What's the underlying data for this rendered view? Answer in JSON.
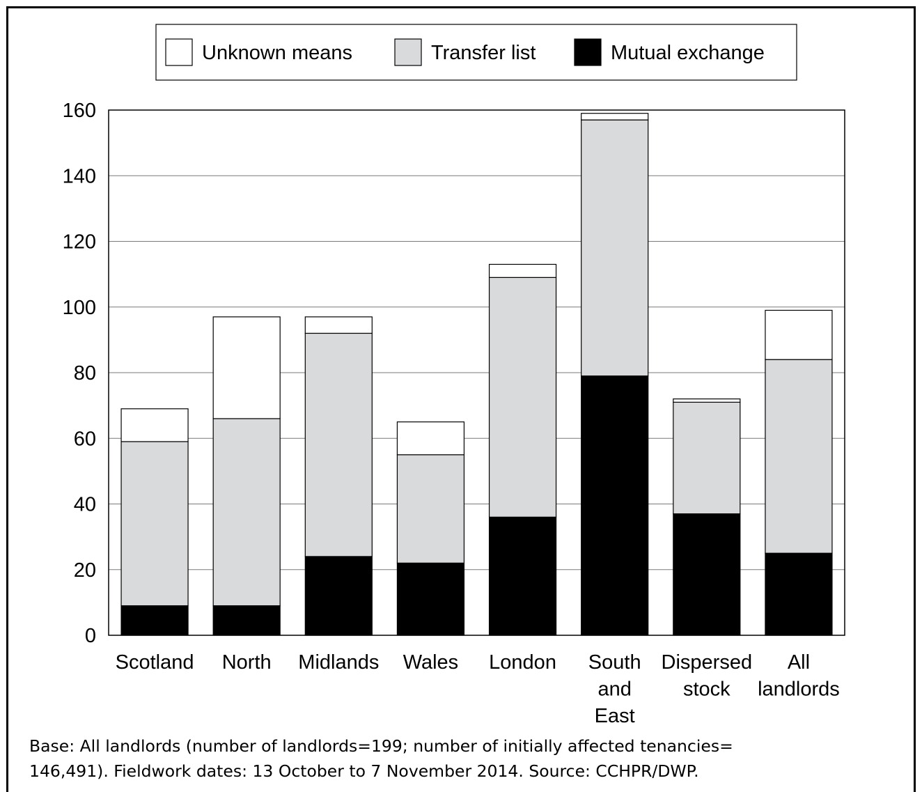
{
  "chart_data": {
    "type": "bar",
    "stacked": true,
    "categories": [
      "Scotland",
      "North",
      "Midlands",
      "Wales",
      "London",
      "South and East",
      "Dispersed stock",
      "All landlords"
    ],
    "category_lines": [
      [
        "Scotland"
      ],
      [
        "North"
      ],
      [
        "Midlands"
      ],
      [
        "Wales"
      ],
      [
        "London"
      ],
      [
        "South",
        "and",
        "East"
      ],
      [
        "Dispersed",
        "stock"
      ],
      [
        "All",
        "landlords"
      ]
    ],
    "series": [
      {
        "name": "Mutual exchange",
        "color": "#000000",
        "values": [
          9,
          9,
          24,
          22,
          36,
          79,
          37,
          25
        ]
      },
      {
        "name": "Transfer list",
        "color": "#d9dadb",
        "values": [
          50,
          57,
          68,
          33,
          73,
          78,
          34,
          59
        ]
      },
      {
        "name": "Unknown means",
        "color": "#ffffff",
        "values": [
          10,
          31,
          5,
          10,
          4,
          2,
          1,
          15
        ]
      }
    ],
    "legend_order": [
      "Unknown means",
      "Transfer list",
      "Mutual exchange"
    ],
    "legend_position": "top-center",
    "ylim": [
      0,
      160
    ],
    "yticks": [
      0,
      20,
      40,
      60,
      80,
      100,
      120,
      140,
      160
    ],
    "grid": true,
    "xlabel": "",
    "ylabel": ""
  },
  "footnote": {
    "line1": "Base: All landlords (number of landlords=199; number of initially affected tenancies=",
    "line2": "146,491). Fieldwork dates: 13 October to 7 November 2014. Source: CCHPR/DWP."
  }
}
